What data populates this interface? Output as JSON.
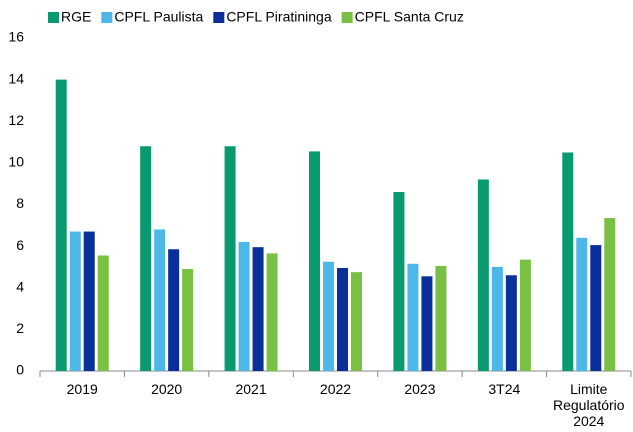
{
  "chart_data": {
    "type": "bar",
    "categories": [
      "2019",
      "2020",
      "2021",
      "2022",
      "2023",
      "3T24",
      "Limite Regulatório 2024"
    ],
    "series": [
      {
        "name": "RGE",
        "color": "#0a9a70",
        "values": [
          14.0,
          10.8,
          10.8,
          10.55,
          8.6,
          9.2,
          10.5
        ]
      },
      {
        "name": "CPFL Paulista",
        "color": "#4db8e8",
        "values": [
          6.7,
          6.8,
          6.2,
          5.25,
          5.15,
          5.0,
          6.4
        ]
      },
      {
        "name": "CPFL Piratininga",
        "color": "#0a2f9a",
        "values": [
          6.7,
          5.85,
          5.95,
          4.95,
          4.55,
          4.6,
          6.05
        ]
      },
      {
        "name": "CPFL Santa Cruz",
        "color": "#7ac143",
        "values": [
          5.55,
          4.9,
          5.65,
          4.75,
          5.05,
          5.35,
          7.35
        ]
      }
    ],
    "ylim": [
      0,
      16
    ],
    "yticks": [
      0,
      2,
      4,
      6,
      8,
      10,
      12,
      14,
      16
    ],
    "grid": false,
    "legend": "top"
  }
}
